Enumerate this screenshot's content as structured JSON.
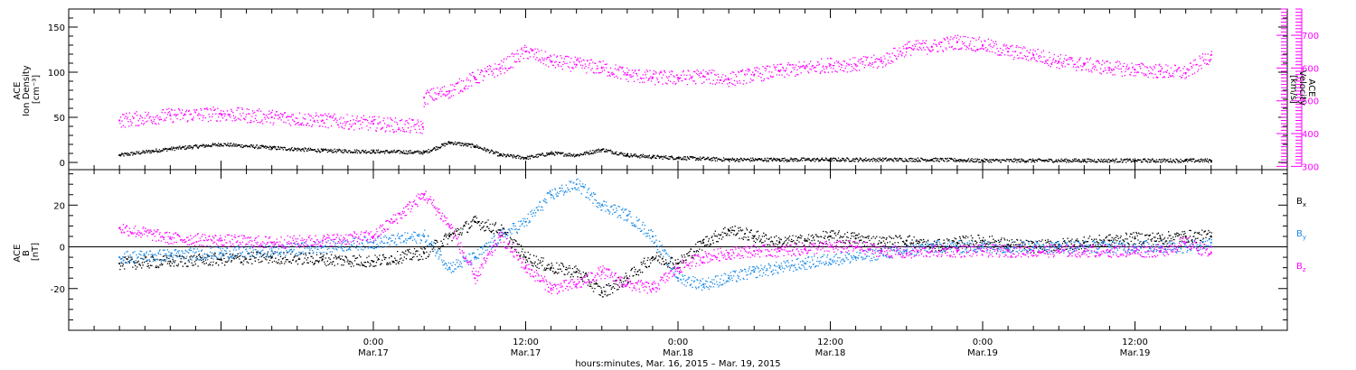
{
  "chart_data": [
    {
      "type": "scatter",
      "panel": "top",
      "ylabel": "ACE\nIon Density\n[cm⁻³]",
      "y2label": "ACE\nVelocity\n[km/s]",
      "ylim": [
        -8,
        170
      ],
      "yticks": [
        0,
        50,
        100,
        150
      ],
      "y2lim": [
        290,
        780
      ],
      "y2ticks": [
        300,
        400,
        500,
        600,
        700
      ],
      "grid": false,
      "colors": {
        "density": "#000000",
        "velocity": "#ff00ff"
      },
      "series": [
        {
          "axis": "left",
          "color": "#000000",
          "x": [
            -20,
            -16,
            -12,
            -8,
            -4,
            0,
            4,
            6,
            8,
            10,
            12,
            14,
            16,
            18,
            20,
            22,
            24,
            28,
            32,
            36,
            40,
            44,
            48,
            52,
            56,
            60,
            64,
            66
          ],
          "y": [
            8,
            15,
            20,
            16,
            13,
            12,
            11,
            22,
            18,
            8,
            5,
            10,
            8,
            14,
            8,
            6,
            5,
            3,
            3,
            3,
            3,
            3,
            2,
            2,
            2,
            2,
            2,
            2
          ]
        },
        {
          "axis": "right",
          "color": "#ff00ff",
          "x": [
            -20,
            -16,
            -12,
            -8,
            -4,
            0,
            3.9,
            4,
            6,
            8,
            10,
            12,
            14,
            16,
            18,
            20,
            22,
            24,
            26,
            28,
            30,
            32,
            34,
            36,
            38,
            40,
            42,
            44,
            46,
            48,
            50,
            52,
            54,
            56,
            58,
            60,
            62,
            64,
            66
          ],
          "y": [
            440,
            455,
            460,
            450,
            440,
            430,
            420,
            510,
            530,
            570,
            600,
            650,
            620,
            610,
            600,
            580,
            570,
            570,
            575,
            565,
            580,
            590,
            600,
            610,
            610,
            620,
            660,
            665,
            680,
            670,
            650,
            640,
            620,
            610,
            600,
            595,
            590,
            585,
            640
          ]
        }
      ]
    },
    {
      "type": "scatter",
      "panel": "bottom",
      "ylabel": "ACE\nB\n[nT]",
      "ylim": [
        -40,
        37
      ],
      "yticks": [
        -20,
        0,
        20
      ],
      "grid": false,
      "zero_line": true,
      "legend_position": "right",
      "series": [
        {
          "name": "Bx",
          "label_main": "B",
          "label_sub": "x",
          "color": "#000000",
          "x": [
            -20,
            -16,
            -12,
            -8,
            -4,
            0,
            4,
            6,
            8,
            10,
            12,
            14,
            16,
            18,
            20,
            22,
            24,
            26,
            28,
            30,
            32,
            34,
            36,
            38,
            40,
            42,
            44,
            46,
            48,
            50,
            52,
            54,
            56,
            58,
            60,
            62,
            64,
            66
          ],
          "y": [
            -8,
            -7,
            -6,
            -5,
            -6,
            -7,
            -3,
            5,
            12,
            8,
            -5,
            -10,
            -12,
            -22,
            -15,
            -5,
            -8,
            2,
            8,
            5,
            2,
            3,
            5,
            4,
            2,
            3,
            0,
            2,
            3,
            1,
            0,
            1,
            2,
            3,
            4,
            4,
            5,
            5
          ]
        },
        {
          "name": "By",
          "label_main": "B",
          "label_sub": "y",
          "color": "#1a8ae6",
          "x": [
            -20,
            -16,
            -12,
            -8,
            -4,
            0,
            4,
            6,
            8,
            10,
            12,
            14,
            16,
            18,
            20,
            22,
            24,
            26,
            28,
            30,
            32,
            34,
            36,
            38,
            40,
            42,
            44,
            46,
            48,
            50,
            52,
            54,
            56,
            58,
            60,
            62,
            64,
            66
          ],
          "y": [
            -5,
            -4,
            -3,
            -2,
            0,
            2,
            5,
            -10,
            -5,
            5,
            12,
            25,
            30,
            20,
            15,
            5,
            -15,
            -18,
            -15,
            -12,
            -10,
            -8,
            -6,
            -5,
            -3,
            -2,
            0,
            0,
            0,
            0,
            0,
            0,
            0,
            0,
            0,
            0,
            0,
            2
          ]
        },
        {
          "name": "Bz",
          "label_main": "B",
          "label_sub": "z",
          "color": "#ff00ff",
          "x": [
            -20,
            -16,
            -12,
            -8,
            -4,
            0,
            4,
            6,
            8,
            10,
            12,
            14,
            16,
            18,
            20,
            22,
            24,
            26,
            28,
            30,
            32,
            34,
            36,
            38,
            40,
            42,
            44,
            46,
            48,
            50,
            52,
            54,
            56,
            58,
            60,
            62,
            64,
            66
          ],
          "y": [
            9,
            4,
            3,
            2,
            3,
            5,
            25,
            10,
            -15,
            5,
            -10,
            -20,
            -18,
            -12,
            -18,
            -20,
            -10,
            -5,
            -3,
            -2,
            -2,
            -1,
            0,
            0,
            -2,
            -3,
            -2,
            -2,
            -2,
            -2,
            -2,
            -2,
            -2,
            -2,
            -2,
            -2,
            2,
            -3
          ]
        }
      ]
    }
  ],
  "x_axis": {
    "xlim": [
      -24,
      72
    ],
    "tick_labels": [
      {
        "hour": 0,
        "time": "0:00",
        "date": "Mar.17"
      },
      {
        "hour": 12,
        "time": "12:00",
        "date": "Mar.17"
      },
      {
        "hour": 24,
        "time": "0:00",
        "date": "Mar.18"
      },
      {
        "hour": 36,
        "time": "12:00",
        "date": "Mar.18"
      },
      {
        "hour": 48,
        "time": "0:00",
        "date": "Mar.19"
      },
      {
        "hour": 60,
        "time": "12:00",
        "date": "Mar.19"
      }
    ],
    "xlabel": "hours:minutes, Mar. 16, 2015 – Mar. 19, 2015"
  }
}
